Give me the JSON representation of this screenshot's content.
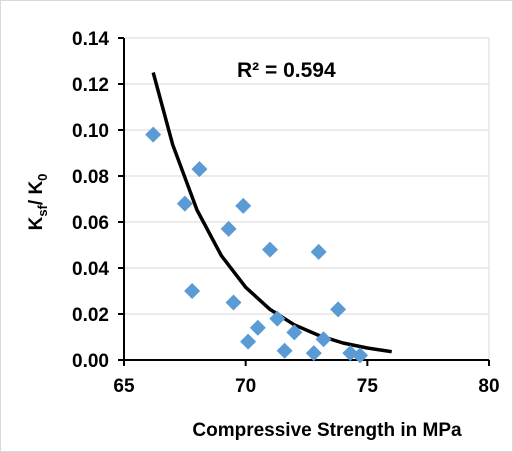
{
  "chart_data": {
    "type": "scatter",
    "title": "",
    "xlabel": "Compressive Strength in MPa",
    "ylabel_main": "K",
    "ylabel_sub1": "sf",
    "ylabel_mid": "/ K",
    "ylabel_sub2": "0",
    "xlim": [
      65,
      80
    ],
    "ylim": [
      0,
      0.14
    ],
    "x_ticks": [
      65,
      70,
      75,
      80
    ],
    "x_tick_labels": [
      "65",
      "70",
      "75",
      "80"
    ],
    "y_ticks": [
      0,
      0.02,
      0.04,
      0.06,
      0.08,
      0.1,
      0.12,
      0.14
    ],
    "y_tick_labels": [
      "0.00",
      "0.02",
      "0.04",
      "0.06",
      "0.08",
      "0.10",
      "0.12",
      "0.14"
    ],
    "grid": "horizontal",
    "annotation": "R² = 0.594",
    "marker_color": "#5B9BD5",
    "trend_color": "#000000",
    "points": [
      {
        "x": 66.2,
        "y": 0.098
      },
      {
        "x": 67.5,
        "y": 0.068
      },
      {
        "x": 68.1,
        "y": 0.083
      },
      {
        "x": 67.8,
        "y": 0.03
      },
      {
        "x": 69.3,
        "y": 0.057
      },
      {
        "x": 69.9,
        "y": 0.067
      },
      {
        "x": 69.5,
        "y": 0.025
      },
      {
        "x": 70.1,
        "y": 0.008
      },
      {
        "x": 70.5,
        "y": 0.014
      },
      {
        "x": 71.0,
        "y": 0.048
      },
      {
        "x": 71.3,
        "y": 0.018
      },
      {
        "x": 71.6,
        "y": 0.004
      },
      {
        "x": 72.0,
        "y": 0.012
      },
      {
        "x": 72.8,
        "y": 0.003
      },
      {
        "x": 73.0,
        "y": 0.047
      },
      {
        "x": 73.2,
        "y": 0.009
      },
      {
        "x": 73.8,
        "y": 0.022
      },
      {
        "x": 74.3,
        "y": 0.003
      },
      {
        "x": 74.7,
        "y": 0.002
      }
    ],
    "trendline": {
      "type": "exponential",
      "x": [
        66.2,
        67.0,
        68.0,
        69.0,
        70.0,
        71.0,
        72.0,
        73.0,
        74.0,
        75.0,
        76.0
      ],
      "y": [
        0.125,
        0.0936,
        0.0652,
        0.0454,
        0.0316,
        0.022,
        0.0153,
        0.0107,
        0.0074,
        0.0052,
        0.0036
      ]
    }
  }
}
